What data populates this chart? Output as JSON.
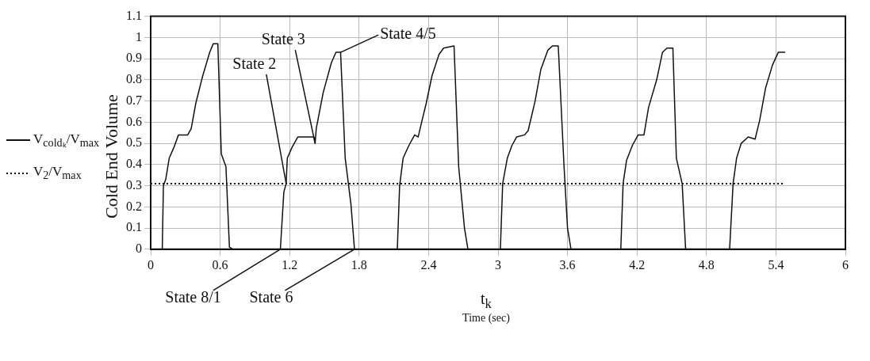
{
  "chart_data": {
    "type": "line",
    "ylabel": "Cold End Volume",
    "xlabel": "t$_{k}$",
    "annotations": [
      "Time (sec)",
      {
        "text": "State 2",
        "x": 1.17,
        "y": 0.31
      },
      {
        "text": "State 3",
        "x": 1.42,
        "y": 0.5
      },
      {
        "text": "State 4/5",
        "x": 1.64,
        "y": 0.93
      },
      {
        "text": "State 8/1",
        "x": 1.12,
        "y": 0
      },
      {
        "text": "State 6",
        "x": 1.76,
        "y": 0
      }
    ],
    "series": [
      {
        "name": "V$_{coldₖ}$/V$_{max}$",
        "color": "#111111",
        "line_style": "solid",
        "x": [
          0,
          0.1,
          0.11,
          0.13,
          0.16,
          0.2,
          0.24,
          0.32,
          0.35,
          0.39,
          0.45,
          0.51,
          0.54,
          0.58,
          0.61,
          0.65,
          0.68,
          0.71,
          1.12,
          1.15,
          1.17,
          1.18,
          1.22,
          1.27,
          1.35,
          1.41,
          1.42,
          1.43,
          1.49,
          1.56,
          1.6,
          1.64,
          1.68,
          1.73,
          1.76,
          2.13,
          2.15,
          2.18,
          2.23,
          2.28,
          2.31,
          2.34,
          2.38,
          2.43,
          2.49,
          2.53,
          2.62,
          2.66,
          2.71,
          2.74,
          3.02,
          3.04,
          3.08,
          3.12,
          3.16,
          3.23,
          3.26,
          3.32,
          3.37,
          3.43,
          3.47,
          3.52,
          3.57,
          3.6,
          3.63,
          4.06,
          4.08,
          4.11,
          4.16,
          4.21,
          4.26,
          4.3,
          4.37,
          4.42,
          4.46,
          4.51,
          4.54,
          4.59,
          4.62,
          5.0,
          5.03,
          5.06,
          5.1,
          5.16,
          5.22,
          5.26,
          5.31,
          5.37,
          5.42,
          5.48
        ],
        "values": [
          0,
          0,
          0.3,
          0.33,
          0.43,
          0.48,
          0.54,
          0.54,
          0.57,
          0.69,
          0.82,
          0.93,
          0.97,
          0.97,
          0.45,
          0.39,
          0.01,
          0,
          0,
          0.27,
          0.31,
          0.43,
          0.48,
          0.53,
          0.53,
          0.53,
          0.5,
          0.57,
          0.74,
          0.88,
          0.93,
          0.93,
          0.43,
          0.21,
          0,
          0,
          0.3,
          0.43,
          0.49,
          0.54,
          0.53,
          0.6,
          0.69,
          0.82,
          0.92,
          0.95,
          0.96,
          0.39,
          0.1,
          0,
          0,
          0.31,
          0.43,
          0.49,
          0.53,
          0.54,
          0.56,
          0.7,
          0.85,
          0.94,
          0.96,
          0.96,
          0.39,
          0.1,
          0,
          0,
          0.31,
          0.42,
          0.49,
          0.54,
          0.54,
          0.67,
          0.8,
          0.93,
          0.95,
          0.95,
          0.43,
          0.31,
          0,
          0,
          0.31,
          0.43,
          0.5,
          0.53,
          0.52,
          0.61,
          0.76,
          0.87,
          0.93,
          0.93
        ]
      },
      {
        "name": "V$_{2}$/V$_{max}$",
        "color": "#111111",
        "line_style": "dotted",
        "x": [
          0,
          5.47
        ],
        "values": [
          0.31,
          0.31
        ]
      }
    ],
    "xlim": [
      0,
      6
    ],
    "xticks": [
      0,
      0.6,
      1.2,
      1.8,
      2.4,
      3,
      3.6,
      4.2,
      4.8,
      5.4,
      6
    ],
    "ylim": [
      0,
      1.1
    ],
    "yticks": [
      0,
      0.1,
      0.2,
      0.3,
      0.4,
      0.5,
      0.6,
      0.7,
      0.8,
      0.9,
      1,
      1.1
    ],
    "grid": true,
    "legend": "left",
    "marker": "none"
  }
}
